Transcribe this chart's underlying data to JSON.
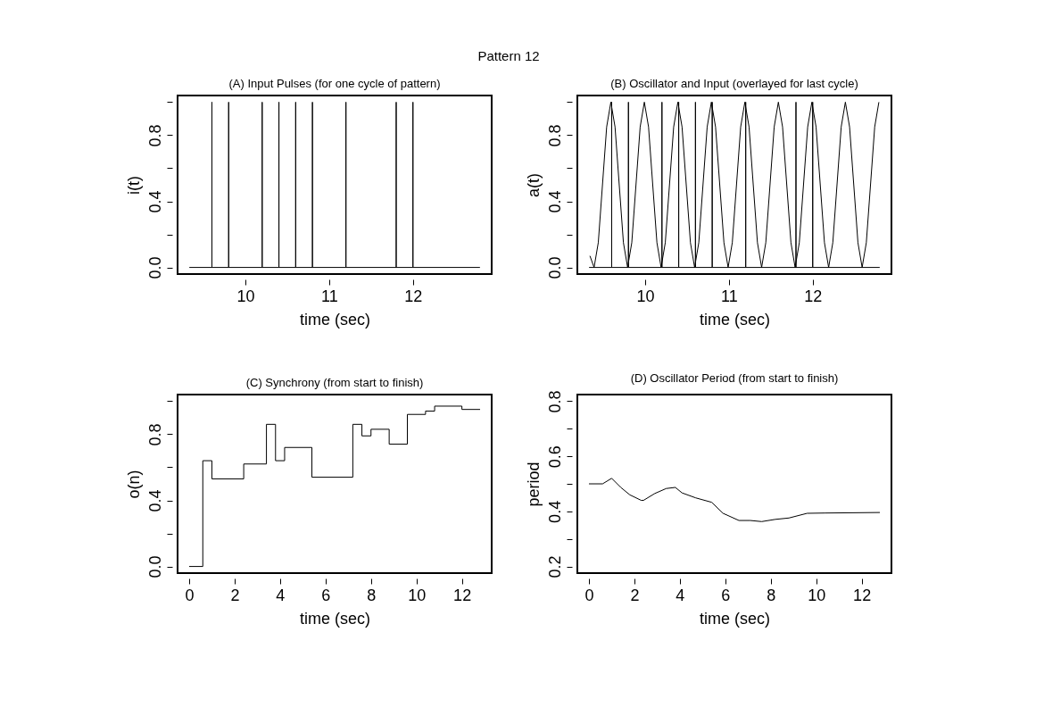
{
  "chart_data": [
    {
      "type": "line",
      "title": "(A) Input Pulses (for one cycle of pattern)",
      "xlabel": "time (sec)",
      "ylabel": "i(t)",
      "annotations": [
        "Pattern 12"
      ],
      "series": [
        {
          "color": "#000000",
          "x": [
            9.33,
            9.6,
            9.6,
            9.6,
            9.8,
            9.8,
            9.8,
            10.2,
            10.2,
            10.2,
            10.4,
            10.4,
            10.4,
            10.6,
            10.6,
            10.6,
            10.8,
            10.8,
            10.8,
            11.2,
            11.2,
            11.2,
            11.8,
            11.8,
            11.8,
            12.0,
            12.0,
            12.0,
            12.8
          ],
          "values": [
            0,
            0,
            1,
            0,
            0,
            1,
            0,
            0,
            1,
            0,
            0,
            1,
            0,
            0,
            1,
            0,
            0,
            1,
            0,
            0,
            1,
            0,
            0,
            1,
            0,
            0,
            1,
            0,
            0
          ]
        }
      ],
      "xlim": [
        9.19,
        12.94
      ],
      "xticks": [
        10,
        11,
        12
      ],
      "ylim": [
        -0.04,
        1.04
      ],
      "yticks": [
        {
          "value": 0,
          "label": "0.0"
        },
        {
          "value": 0.2,
          "label": null
        },
        0.4,
        {
          "value": 0.6,
          "label": null
        },
        0.8,
        {
          "value": 1.0,
          "label": null
        }
      ],
      "grid": false
    },
    {
      "type": "line",
      "title": "(B) Oscillator and Input (overlayed for last cycle)",
      "xlabel": "time (sec)",
      "ylabel": "a(t)",
      "series": [
        {
          "color": "#000000",
          "x": [
            9.34,
            9.39,
            9.44,
            9.49,
            9.54,
            9.59,
            9.64,
            9.69,
            9.74,
            9.79,
            9.84,
            9.89,
            9.94,
            9.99,
            10.04,
            10.09,
            10.14,
            10.19,
            10.24,
            10.29,
            10.34,
            10.39,
            10.44,
            10.49,
            10.54,
            10.59,
            10.64,
            10.69,
            10.74,
            10.79,
            10.84,
            10.89,
            10.94,
            10.99,
            11.04,
            11.09,
            11.14,
            11.19,
            11.24,
            11.29,
            11.34,
            11.39,
            11.44,
            11.49,
            11.54,
            11.59,
            11.64,
            11.69,
            11.74,
            11.79,
            11.84,
            11.89,
            11.94,
            11.99,
            12.04,
            12.09,
            12.14,
            12.19,
            12.24,
            12.29,
            12.34,
            12.39,
            12.44,
            12.49,
            12.54,
            12.59,
            12.64,
            12.69,
            12.74,
            12.79
          ],
          "values": [
            0.07,
            0,
            0.15,
            0.5,
            0.85,
            1,
            0.85,
            0.5,
            0.15,
            0,
            0.15,
            0.5,
            0.85,
            1,
            0.85,
            0.5,
            0.15,
            0,
            0.15,
            0.5,
            0.85,
            1,
            0.85,
            0.5,
            0.15,
            0,
            0.15,
            0.5,
            0.85,
            1,
            0.85,
            0.5,
            0.15,
            0,
            0.15,
            0.5,
            0.85,
            1,
            0.85,
            0.5,
            0.15,
            0,
            0.15,
            0.5,
            0.85,
            1,
            0.85,
            0.5,
            0.15,
            0,
            0.15,
            0.5,
            0.85,
            1,
            0.85,
            0.5,
            0.15,
            0,
            0.15,
            0.5,
            0.85,
            1,
            0.85,
            0.5,
            0.15,
            0,
            0.15,
            0.5,
            0.85,
            1
          ]
        },
        {
          "color": "#000000",
          "x": [
            9.33,
            9.6,
            9.6,
            9.6,
            9.8,
            9.8,
            9.8,
            10.2,
            10.2,
            10.2,
            10.4,
            10.4,
            10.4,
            10.6,
            10.6,
            10.6,
            10.8,
            10.8,
            10.8,
            11.2,
            11.2,
            11.2,
            11.8,
            11.8,
            11.8,
            12.0,
            12.0,
            12.0,
            12.8
          ],
          "values": [
            0,
            0,
            1,
            0,
            0,
            1,
            0,
            0,
            1,
            0,
            0,
            1,
            0,
            0,
            1,
            0,
            0,
            1,
            0,
            0,
            1,
            0,
            0,
            1,
            0,
            0,
            1,
            0,
            0
          ]
        }
      ],
      "xlim": [
        9.19,
        12.94
      ],
      "xticks": [
        10,
        11,
        12
      ],
      "ylim": [
        -0.04,
        1.04
      ],
      "yticks": [
        {
          "value": 0,
          "label": "0.0"
        },
        {
          "value": 0.2,
          "label": null
        },
        0.4,
        {
          "value": 0.6,
          "label": null
        },
        0.8,
        {
          "value": 1.0,
          "label": null
        }
      ],
      "grid": false
    },
    {
      "type": "step",
      "title": "(C) Synchrony (from start to finish)",
      "xlabel": "time (sec)",
      "ylabel": "o(n)",
      "series": [
        {
          "color": "#000000",
          "x": [
            0,
            0.6,
            1.0,
            2.4,
            3.4,
            3.8,
            4.2,
            5.4,
            7.2,
            7.6,
            8.0,
            8.8,
            9.6,
            10.4,
            10.8,
            12.0,
            12.8
          ],
          "values": [
            0,
            0.64,
            0.53,
            0.62,
            0.86,
            0.64,
            0.72,
            0.54,
            0.86,
            0.79,
            0.83,
            0.74,
            0.92,
            0.94,
            0.97,
            0.95,
            0.95
          ]
        }
      ],
      "xlim": [
        -0.51,
        13.31
      ],
      "xticks": [
        0,
        2,
        4,
        6,
        8,
        10,
        12
      ],
      "ylim": [
        -0.04,
        1.04
      ],
      "yticks": [
        {
          "value": 0,
          "label": "0.0"
        },
        {
          "value": 0.2,
          "label": null
        },
        0.4,
        {
          "value": 0.6,
          "label": null
        },
        0.8,
        {
          "value": 1.0,
          "label": null
        }
      ],
      "grid": false
    },
    {
      "type": "line",
      "title": "(D) Oscillator Period (from start to finish)",
      "xlabel": "time (sec)",
      "ylabel": "period",
      "series": [
        {
          "color": "#000000",
          "x": [
            0,
            0.6,
            1.0,
            1.4,
            1.8,
            2.3,
            2.4,
            2.9,
            3.4,
            3.8,
            4.1,
            4.7,
            5.4,
            5.9,
            6.6,
            7.1,
            7.6,
            8.2,
            8.8,
            9.6,
            10.4,
            12.8
          ],
          "values": [
            0.5,
            0.5,
            0.52,
            0.487,
            0.46,
            0.44,
            0.44,
            0.465,
            0.483,
            0.487,
            0.467,
            0.449,
            0.433,
            0.393,
            0.367,
            0.367,
            0.363,
            0.371,
            0.376,
            0.393,
            0.394,
            0.396
          ]
        }
      ],
      "xlim": [
        -0.51,
        13.31
      ],
      "xticks": [
        0,
        2,
        4,
        6,
        8,
        10,
        12
      ],
      "ylim": [
        0.176,
        0.824
      ],
      "yticks": [
        0.2,
        {
          "value": 0.3,
          "label": null
        },
        0.4,
        {
          "value": 0.5,
          "label": null
        },
        0.6,
        {
          "value": 0.7,
          "label": null
        },
        0.8
      ],
      "grid": false
    }
  ]
}
